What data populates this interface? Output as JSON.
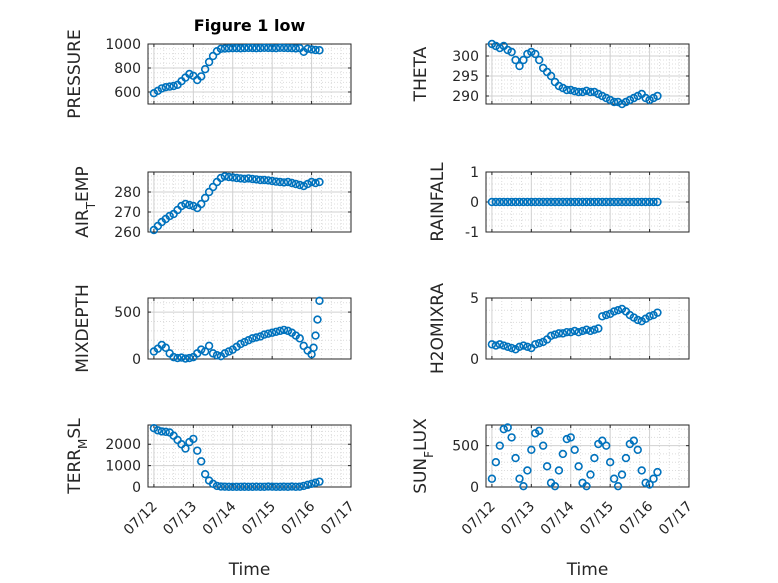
{
  "figure": {
    "title": "Figure 1 low",
    "marker_color": "#0072BD",
    "x_axis_label": "Time",
    "x_tick_labels": [
      "07/12",
      "07/13",
      "07/14",
      "07/15",
      "07/16",
      "07/17"
    ]
  },
  "chart_data": [
    {
      "type": "scatter",
      "ylabel": "PRESSURE",
      "ylim": [
        500,
        1000
      ],
      "yticks": [
        600,
        800,
        1000
      ],
      "grid": true,
      "x": [
        12.0,
        12.1,
        12.2,
        12.3,
        12.4,
        12.5,
        12.6,
        12.7,
        12.8,
        12.9,
        13.0,
        13.1,
        13.2,
        13.3,
        13.4,
        13.5,
        13.6,
        13.7,
        13.8,
        13.9,
        14.0,
        14.1,
        14.2,
        14.3,
        14.4,
        14.5,
        14.6,
        14.7,
        14.8,
        14.9,
        15.0,
        15.1,
        15.2,
        15.3,
        15.4,
        15.5,
        15.6,
        15.7,
        15.8,
        15.9,
        16.0,
        16.1,
        16.2
      ],
      "y": [
        590,
        610,
        630,
        640,
        645,
        650,
        660,
        690,
        720,
        750,
        735,
        700,
        730,
        790,
        850,
        900,
        940,
        960,
        962,
        964,
        965,
        965,
        964,
        966,
        967,
        966,
        965,
        966,
        968,
        967,
        966,
        965,
        968,
        967,
        966,
        965,
        963,
        965,
        935,
        960,
        955,
        950,
        948
      ]
    },
    {
      "type": "scatter",
      "ylabel": "THETA",
      "ylim": [
        288,
        303
      ],
      "yticks": [
        290,
        295,
        300
      ],
      "grid": true,
      "x": [
        12.0,
        12.1,
        12.2,
        12.3,
        12.4,
        12.5,
        12.6,
        12.7,
        12.8,
        12.9,
        13.0,
        13.1,
        13.2,
        13.3,
        13.4,
        13.5,
        13.6,
        13.7,
        13.8,
        13.9,
        14.0,
        14.1,
        14.2,
        14.3,
        14.4,
        14.5,
        14.6,
        14.7,
        14.8,
        14.9,
        15.0,
        15.1,
        15.2,
        15.3,
        15.4,
        15.5,
        15.6,
        15.7,
        15.8,
        15.9,
        16.0,
        16.1,
        16.2
      ],
      "y": [
        303,
        302.5,
        302,
        302.5,
        301.5,
        301,
        299,
        297.5,
        299,
        300.5,
        301,
        300.5,
        299,
        297,
        296,
        295,
        293.5,
        292.5,
        292,
        291.5,
        291.5,
        291.2,
        291,
        291,
        291.3,
        291,
        291,
        290.5,
        290,
        289.5,
        289,
        288.5,
        288.5,
        288,
        288.5,
        289,
        289.5,
        290,
        290.5,
        289.5,
        289,
        289.5,
        290
      ]
    },
    {
      "type": "scatter",
      "ylabel": "AIR_TEMP",
      "ylim": [
        260,
        290
      ],
      "yticks": [
        260,
        270,
        280
      ],
      "grid": true,
      "x": [
        12.0,
        12.1,
        12.2,
        12.3,
        12.4,
        12.5,
        12.6,
        12.7,
        12.8,
        12.9,
        13.0,
        13.1,
        13.2,
        13.3,
        13.4,
        13.5,
        13.6,
        13.7,
        13.8,
        13.9,
        14.0,
        14.1,
        14.2,
        14.3,
        14.4,
        14.5,
        14.6,
        14.7,
        14.8,
        14.9,
        15.0,
        15.1,
        15.2,
        15.3,
        15.4,
        15.5,
        15.6,
        15.7,
        15.8,
        15.9,
        16.0,
        16.1,
        16.2
      ],
      "y": [
        261,
        263,
        265,
        266.5,
        268,
        269,
        271,
        273,
        274,
        273.5,
        273,
        272,
        274,
        277,
        280,
        282.5,
        285,
        287,
        287.8,
        287.5,
        287.3,
        287,
        286.8,
        286.6,
        286.8,
        286.5,
        286.3,
        286,
        286,
        285.8,
        285.5,
        285.2,
        285,
        284.8,
        285,
        284.5,
        284,
        283.5,
        283,
        284,
        285,
        284.5,
        285
      ]
    },
    {
      "type": "scatter",
      "ylabel": "RAINFALL",
      "ylim": [
        -1,
        1
      ],
      "yticks": [
        -1,
        0,
        1
      ],
      "grid": true,
      "x": [
        12.0,
        12.1,
        12.2,
        12.3,
        12.4,
        12.5,
        12.6,
        12.7,
        12.8,
        12.9,
        13.0,
        13.1,
        13.2,
        13.3,
        13.4,
        13.5,
        13.6,
        13.7,
        13.8,
        13.9,
        14.0,
        14.1,
        14.2,
        14.3,
        14.4,
        14.5,
        14.6,
        14.7,
        14.8,
        14.9,
        15.0,
        15.1,
        15.2,
        15.3,
        15.4,
        15.5,
        15.6,
        15.7,
        15.8,
        15.9,
        16.0,
        16.1,
        16.2
      ],
      "y": [
        0,
        0,
        0,
        0,
        0,
        0,
        0,
        0,
        0,
        0,
        0,
        0,
        0,
        0,
        0,
        0,
        0,
        0,
        0,
        0,
        0,
        0,
        0,
        0,
        0,
        0,
        0,
        0,
        0,
        0,
        0,
        0,
        0,
        0,
        0,
        0,
        0,
        0,
        0,
        0,
        0,
        0,
        0
      ]
    },
    {
      "type": "scatter",
      "ylabel": "MIXDEPTH",
      "ylim": [
        0,
        650
      ],
      "yticks": [
        0,
        500
      ],
      "grid": true,
      "x": [
        12.0,
        12.1,
        12.2,
        12.3,
        12.4,
        12.5,
        12.6,
        12.7,
        12.8,
        12.9,
        13.0,
        13.1,
        13.2,
        13.3,
        13.4,
        13.5,
        13.6,
        13.7,
        13.8,
        13.9,
        14.0,
        14.1,
        14.2,
        14.3,
        14.4,
        14.5,
        14.6,
        14.7,
        14.8,
        14.9,
        15.0,
        15.1,
        15.2,
        15.3,
        15.4,
        15.5,
        15.6,
        15.7,
        15.8,
        15.9,
        16.0,
        16.05,
        16.1,
        16.15,
        16.2
      ],
      "y": [
        80,
        110,
        150,
        120,
        60,
        20,
        10,
        15,
        5,
        10,
        20,
        60,
        100,
        80,
        140,
        60,
        40,
        30,
        60,
        80,
        100,
        130,
        160,
        180,
        200,
        220,
        230,
        240,
        260,
        270,
        280,
        290,
        300,
        310,
        300,
        280,
        250,
        220,
        140,
        90,
        50,
        120,
        250,
        420,
        620
      ]
    },
    {
      "type": "scatter",
      "ylabel": "H2OMIXRA",
      "ylim": [
        0,
        5
      ],
      "yticks": [
        0,
        5
      ],
      "grid": true,
      "x": [
        12.0,
        12.1,
        12.2,
        12.3,
        12.4,
        12.5,
        12.6,
        12.7,
        12.8,
        12.9,
        13.0,
        13.1,
        13.2,
        13.3,
        13.4,
        13.5,
        13.6,
        13.7,
        13.8,
        13.9,
        14.0,
        14.1,
        14.2,
        14.3,
        14.4,
        14.5,
        14.6,
        14.7,
        14.8,
        14.9,
        15.0,
        15.1,
        15.2,
        15.3,
        15.4,
        15.5,
        15.6,
        15.7,
        15.8,
        15.9,
        16.0,
        16.1,
        16.2
      ],
      "y": [
        1.2,
        1.1,
        1.2,
        1.1,
        1.0,
        0.9,
        0.8,
        1.0,
        1.1,
        1.0,
        0.9,
        1.2,
        1.3,
        1.4,
        1.6,
        1.9,
        2.0,
        2.1,
        2.1,
        2.2,
        2.2,
        2.3,
        2.2,
        2.3,
        2.4,
        2.3,
        2.4,
        2.5,
        3.5,
        3.6,
        3.7,
        3.9,
        4.0,
        4.1,
        3.9,
        3.6,
        3.4,
        3.2,
        3.1,
        3.3,
        3.5,
        3.6,
        3.8
      ]
    },
    {
      "type": "scatter",
      "ylabel": "TERR_MSL",
      "ylim": [
        0,
        2900
      ],
      "yticks": [
        0,
        1000,
        2000
      ],
      "grid": true,
      "x": [
        12.0,
        12.1,
        12.2,
        12.3,
        12.4,
        12.5,
        12.6,
        12.7,
        12.8,
        12.9,
        13.0,
        13.1,
        13.2,
        13.3,
        13.4,
        13.5,
        13.6,
        13.7,
        13.8,
        13.9,
        14.0,
        14.1,
        14.2,
        14.3,
        14.4,
        14.5,
        14.6,
        14.7,
        14.8,
        14.9,
        15.0,
        15.1,
        15.2,
        15.3,
        15.4,
        15.5,
        15.6,
        15.7,
        15.8,
        15.9,
        16.0,
        16.1,
        16.2
      ],
      "y": [
        2750,
        2650,
        2600,
        2580,
        2550,
        2400,
        2200,
        2000,
        1800,
        2100,
        2250,
        1700,
        1200,
        600,
        300,
        150,
        50,
        20,
        15,
        10,
        10,
        8,
        10,
        12,
        10,
        10,
        15,
        10,
        10,
        20,
        15,
        10,
        10,
        15,
        10,
        20,
        10,
        15,
        50,
        100,
        150,
        200,
        250
      ]
    },
    {
      "type": "scatter",
      "ylabel": "SUN_FLUX",
      "ylim": [
        0,
        750
      ],
      "yticks": [
        0,
        500
      ],
      "grid": true,
      "x": [
        12.0,
        12.1,
        12.2,
        12.3,
        12.4,
        12.5,
        12.6,
        12.7,
        12.8,
        12.9,
        13.0,
        13.1,
        13.2,
        13.3,
        13.4,
        13.5,
        13.6,
        13.7,
        13.8,
        13.9,
        14.0,
        14.1,
        14.2,
        14.3,
        14.4,
        14.5,
        14.6,
        14.7,
        14.8,
        14.9,
        15.0,
        15.1,
        15.2,
        15.3,
        15.4,
        15.5,
        15.6,
        15.7,
        15.8,
        15.9,
        16.0,
        16.1,
        16.2
      ],
      "y": [
        100,
        300,
        500,
        700,
        720,
        600,
        350,
        100,
        10,
        200,
        450,
        650,
        680,
        500,
        250,
        50,
        10,
        200,
        400,
        580,
        600,
        450,
        250,
        50,
        10,
        150,
        350,
        520,
        560,
        500,
        300,
        100,
        10,
        150,
        350,
        520,
        560,
        450,
        200,
        50,
        30,
        100,
        180
      ]
    }
  ]
}
